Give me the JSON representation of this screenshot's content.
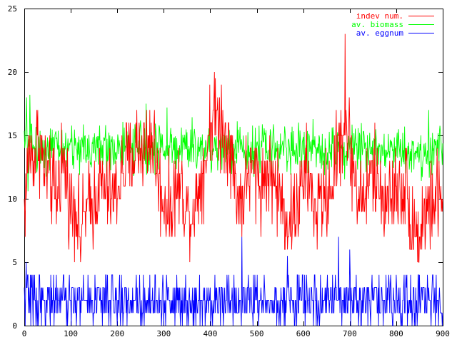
{
  "chart_data": {
    "type": "line",
    "title": "",
    "xlabel": "",
    "ylabel": "",
    "xlim": [
      0,
      900
    ],
    "ylim": [
      0,
      25
    ],
    "xticks": [
      0,
      100,
      200,
      300,
      400,
      500,
      600,
      700,
      800,
      900
    ],
    "yticks": [
      0,
      5,
      10,
      15,
      20,
      25
    ],
    "xtick_labels": [
      "0",
      "100",
      "200",
      "300",
      "400",
      "500",
      "600",
      "700",
      "800",
      "900"
    ],
    "ytick_labels": [
      "0",
      "5",
      "10",
      "15",
      "20",
      "25"
    ],
    "grid": false,
    "legend_position": "top-right",
    "series": [
      {
        "name": "indev num.",
        "color": "#ff0000",
        "anchors": [
          [
            0,
            9
          ],
          [
            10,
            14
          ],
          [
            20,
            13
          ],
          [
            30,
            15
          ],
          [
            40,
            13
          ],
          [
            50,
            12
          ],
          [
            60,
            11
          ],
          [
            70,
            10
          ],
          [
            80,
            13
          ],
          [
            90,
            12
          ],
          [
            100,
            9
          ],
          [
            110,
            10
          ],
          [
            120,
            7
          ],
          [
            130,
            9
          ],
          [
            140,
            9
          ],
          [
            150,
            10
          ],
          [
            160,
            11
          ],
          [
            170,
            11
          ],
          [
            180,
            10
          ],
          [
            190,
            10
          ],
          [
            200,
            11
          ],
          [
            210,
            12
          ],
          [
            220,
            13
          ],
          [
            230,
            13
          ],
          [
            240,
            14
          ],
          [
            250,
            14
          ],
          [
            260,
            14
          ],
          [
            270,
            15
          ],
          [
            280,
            14
          ],
          [
            290,
            11
          ],
          [
            300,
            10
          ],
          [
            310,
            9
          ],
          [
            320,
            10
          ],
          [
            330,
            11
          ],
          [
            340,
            11
          ],
          [
            350,
            9
          ],
          [
            360,
            9
          ],
          [
            370,
            10
          ],
          [
            380,
            12
          ],
          [
            390,
            13
          ],
          [
            400,
            16
          ],
          [
            410,
            17
          ],
          [
            420,
            16
          ],
          [
            430,
            15
          ],
          [
            440,
            15
          ],
          [
            450,
            12
          ],
          [
            460,
            10
          ],
          [
            470,
            10
          ],
          [
            480,
            12
          ],
          [
            490,
            12
          ],
          [
            500,
            12
          ],
          [
            510,
            11
          ],
          [
            520,
            12
          ],
          [
            530,
            12
          ],
          [
            540,
            11
          ],
          [
            550,
            10
          ],
          [
            560,
            9
          ],
          [
            570,
            8
          ],
          [
            580,
            9
          ],
          [
            590,
            10
          ],
          [
            600,
            11
          ],
          [
            610,
            12
          ],
          [
            620,
            10
          ],
          [
            630,
            9
          ],
          [
            640,
            10
          ],
          [
            650,
            10
          ],
          [
            660,
            11
          ],
          [
            670,
            13
          ],
          [
            680,
            15
          ],
          [
            690,
            16
          ],
          [
            700,
            14
          ],
          [
            710,
            12
          ],
          [
            720,
            10
          ],
          [
            730,
            10
          ],
          [
            740,
            11
          ],
          [
            750,
            12
          ],
          [
            760,
            11
          ],
          [
            770,
            10
          ],
          [
            780,
            10
          ],
          [
            790,
            10
          ],
          [
            800,
            11
          ],
          [
            810,
            11
          ],
          [
            820,
            11
          ],
          [
            830,
            9
          ],
          [
            840,
            8
          ],
          [
            850,
            7
          ],
          [
            860,
            9
          ],
          [
            870,
            9
          ],
          [
            880,
            10
          ],
          [
            890,
            10
          ],
          [
            900,
            10
          ]
        ],
        "noise": 2.6,
        "min": 5,
        "max": 20,
        "spikes": [
          [
            690,
            23
          ],
          [
            411,
            19.5
          ],
          [
            424,
            19
          ],
          [
            833,
            6
          ],
          [
            846,
            5
          ],
          [
            121,
            5
          ]
        ],
        "integer": true
      },
      {
        "name": "av. biomass",
        "color": "#00ff00",
        "anchors": [
          [
            0,
            14
          ],
          [
            10,
            15
          ],
          [
            20,
            14
          ],
          [
            30,
            14
          ],
          [
            50,
            14
          ],
          [
            100,
            14
          ],
          [
            150,
            14
          ],
          [
            200,
            14
          ],
          [
            250,
            14
          ],
          [
            300,
            14
          ],
          [
            350,
            14
          ],
          [
            400,
            14
          ],
          [
            450,
            14
          ],
          [
            500,
            14
          ],
          [
            550,
            14
          ],
          [
            600,
            14
          ],
          [
            650,
            14
          ],
          [
            700,
            14
          ],
          [
            750,
            14
          ],
          [
            800,
            14
          ],
          [
            850,
            13.5
          ],
          [
            900,
            14
          ]
        ],
        "noise": 1.4,
        "min": 10.5,
        "max": 17.5,
        "spikes": [
          [
            5,
            18
          ],
          [
            12,
            18.2
          ],
          [
            8,
            10.6
          ],
          [
            262,
            17.5
          ],
          [
            307,
            17.2
          ],
          [
            870,
            17
          ]
        ],
        "integer": false
      },
      {
        "name": "av. eggnum",
        "color": "#0000ff",
        "anchors": [
          [
            0,
            2
          ],
          [
            900,
            2
          ]
        ],
        "noise": 1.6,
        "min": 0,
        "max": 4,
        "spikes": [
          [
            4,
            5
          ],
          [
            7,
            4
          ],
          [
            468,
            7
          ],
          [
            676,
            7
          ],
          [
            700,
            6
          ],
          [
            566,
            5.5
          ]
        ],
        "integer": true
      }
    ]
  }
}
